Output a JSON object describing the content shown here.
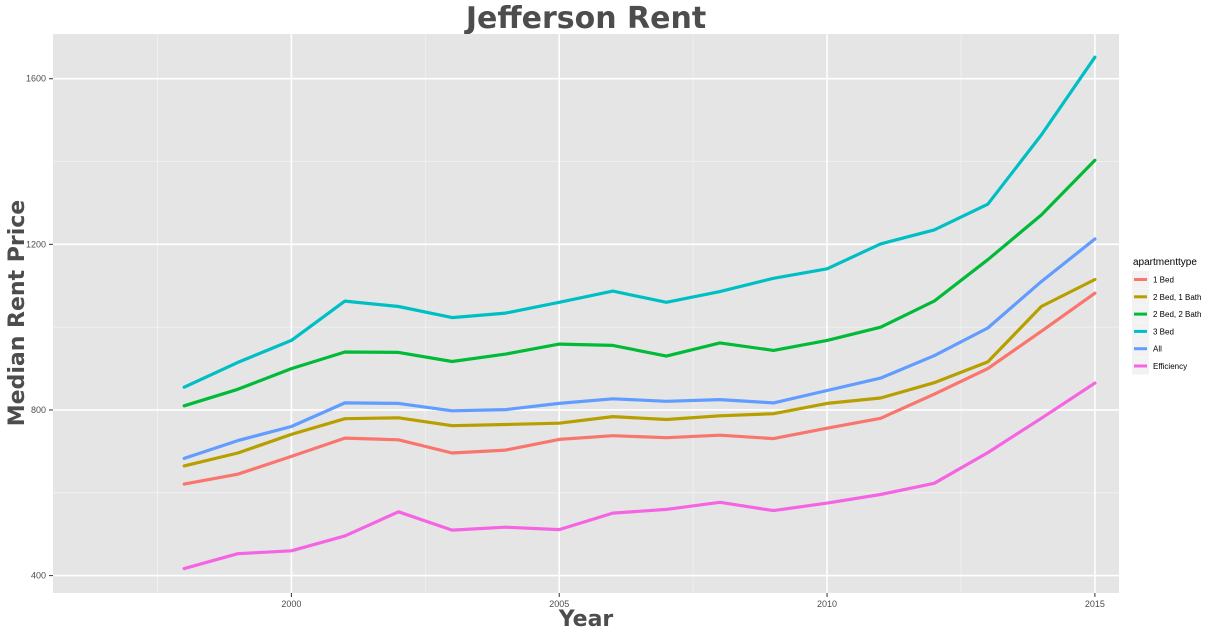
{
  "chart_data": {
    "type": "line",
    "title": "Jefferson Rent",
    "xlabel": "Year",
    "ylabel": "Median Rent Price",
    "x": [
      1998,
      1999,
      2000,
      2001,
      2002,
      2003,
      2004,
      2005,
      2006,
      2007,
      2008,
      2009,
      2010,
      2011,
      2012,
      2013,
      2014,
      2015
    ],
    "xlim": [
      1995.55,
      2015.45
    ],
    "ylim": [
      358,
      1708
    ],
    "xticks": [
      2000,
      2005,
      2010,
      2015
    ],
    "yticks": [
      400,
      800,
      1200,
      1600
    ],
    "grid": true,
    "legend": {
      "title": "apartmenttype",
      "position": "right"
    },
    "series": [
      {
        "name": "1 Bed",
        "color": "#F8766D",
        "values": [
          621,
          645,
          688,
          732,
          728,
          696,
          703,
          729,
          738,
          733,
          739,
          731,
          756,
          780,
          838,
          900,
          990,
          1082
        ]
      },
      {
        "name": "2 Bed, 1 Bath",
        "color": "#B79F00",
        "values": [
          665,
          696,
          741,
          779,
          781,
          762,
          765,
          768,
          784,
          777,
          786,
          791,
          816,
          829,
          866,
          916,
          1050,
          1115
        ]
      },
      {
        "name": "2 Bed, 2 Bath",
        "color": "#00BA38",
        "values": [
          810,
          850,
          900,
          940,
          939,
          917,
          935,
          959,
          956,
          930,
          962,
          944,
          968,
          1000,
          1063,
          1163,
          1271,
          1403
        ]
      },
      {
        "name": "3 Bed",
        "color": "#00BFC4",
        "values": [
          855,
          915,
          968,
          1063,
          1050,
          1023,
          1034,
          1060,
          1087,
          1060,
          1086,
          1118,
          1141,
          1201,
          1235,
          1297,
          1464,
          1652
        ]
      },
      {
        "name": "All",
        "color": "#619CFF",
        "values": [
          683,
          726,
          760,
          817,
          816,
          798,
          801,
          816,
          827,
          821,
          825,
          817,
          847,
          877,
          931,
          998,
          1110,
          1213
        ]
      },
      {
        "name": "Efficiency",
        "color": "#F564E3",
        "values": [
          417,
          453,
          460,
          496,
          554,
          510,
          517,
          511,
          551,
          560,
          577,
          557,
          575,
          596,
          623,
          697,
          780,
          865
        ]
      }
    ]
  }
}
